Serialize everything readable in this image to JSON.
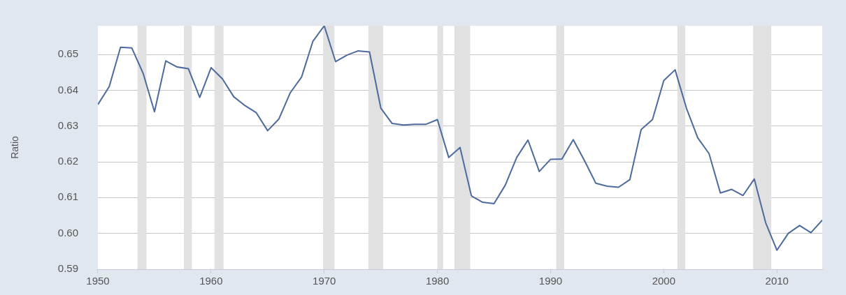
{
  "chart_data": {
    "type": "line",
    "ylabel": "Ratio",
    "x": [
      1950,
      1951,
      1952,
      1953,
      1954,
      1955,
      1956,
      1957,
      1958,
      1959,
      1960,
      1961,
      1962,
      1963,
      1964,
      1965,
      1966,
      1967,
      1968,
      1969,
      1970,
      1971,
      1972,
      1973,
      1974,
      1975,
      1976,
      1977,
      1978,
      1979,
      1980,
      1981,
      1982,
      1983,
      1984,
      1985,
      1986,
      1987,
      1988,
      1989,
      1990,
      1991,
      1992,
      1993,
      1994,
      1995,
      1996,
      1997,
      1998,
      1999,
      2000,
      2001,
      2002,
      2003,
      2004,
      2005,
      2006,
      2007,
      2008,
      2009,
      2010,
      2011,
      2012,
      2013,
      2014
    ],
    "series": [
      {
        "color": "#4c6a9c",
        "values": [
          0.636,
          0.641,
          0.652,
          0.6518,
          0.6447,
          0.634,
          0.6482,
          0.6465,
          0.646,
          0.638,
          0.6463,
          0.6432,
          0.6382,
          0.6357,
          0.6337,
          0.6287,
          0.632,
          0.6393,
          0.6437,
          0.6537,
          0.658,
          0.648,
          0.6498,
          0.651,
          0.6507,
          0.635,
          0.6307,
          0.6303,
          0.6305,
          0.6305,
          0.6318,
          0.6212,
          0.624,
          0.6105,
          0.6087,
          0.6083,
          0.6135,
          0.6212,
          0.6261,
          0.6173,
          0.6207,
          0.6208,
          0.6262,
          0.6203,
          0.614,
          0.6132,
          0.6129,
          0.615,
          0.629,
          0.6318,
          0.6427,
          0.6457,
          0.635,
          0.6267,
          0.6223,
          0.6113,
          0.6123,
          0.6106,
          0.6152,
          0.603,
          0.5953,
          0.6,
          0.6022,
          0.6002,
          0.6037
        ]
      }
    ],
    "xlim": [
      1950,
      2014
    ],
    "xticks": [
      1950,
      1960,
      1970,
      1980,
      1990,
      2000,
      2010
    ],
    "ylim": [
      0.59,
      0.658
    ],
    "yticks": [
      {
        "value": 0.59,
        "label": "0.59"
      },
      {
        "value": 0.6,
        "label": "0.60"
      },
      {
        "value": 0.61,
        "label": "0.61"
      },
      {
        "value": 0.62,
        "label": "0.62"
      },
      {
        "value": 0.63,
        "label": "0.63"
      },
      {
        "value": 0.64,
        "label": "0.64"
      },
      {
        "value": 0.65,
        "label": "0.65"
      }
    ],
    "bands": [
      {
        "axis": "x",
        "from": 1953.5,
        "to": 1954.3,
        "color": "#e1e1e1"
      },
      {
        "axis": "x",
        "from": 1957.6,
        "to": 1958.3,
        "color": "#e1e1e1"
      },
      {
        "axis": "x",
        "from": 1960.3,
        "to": 1961.1,
        "color": "#e1e1e1"
      },
      {
        "axis": "x",
        "from": 1969.9,
        "to": 1970.9,
        "color": "#e1e1e1"
      },
      {
        "axis": "x",
        "from": 1973.9,
        "to": 1975.2,
        "color": "#e1e1e1"
      },
      {
        "axis": "x",
        "from": 1980.0,
        "to": 1980.5,
        "color": "#e1e1e1"
      },
      {
        "axis": "x",
        "from": 1981.5,
        "to": 1982.9,
        "color": "#e1e1e1"
      },
      {
        "axis": "x",
        "from": 1990.5,
        "to": 1991.2,
        "color": "#e1e1e1"
      },
      {
        "axis": "x",
        "from": 2001.2,
        "to": 2001.9,
        "color": "#e1e1e1"
      },
      {
        "axis": "x",
        "from": 2007.9,
        "to": 2009.5,
        "color": "#e1e1e1"
      }
    ],
    "grid": "y",
    "legend": false,
    "marker": "none",
    "line_style": "solid"
  }
}
